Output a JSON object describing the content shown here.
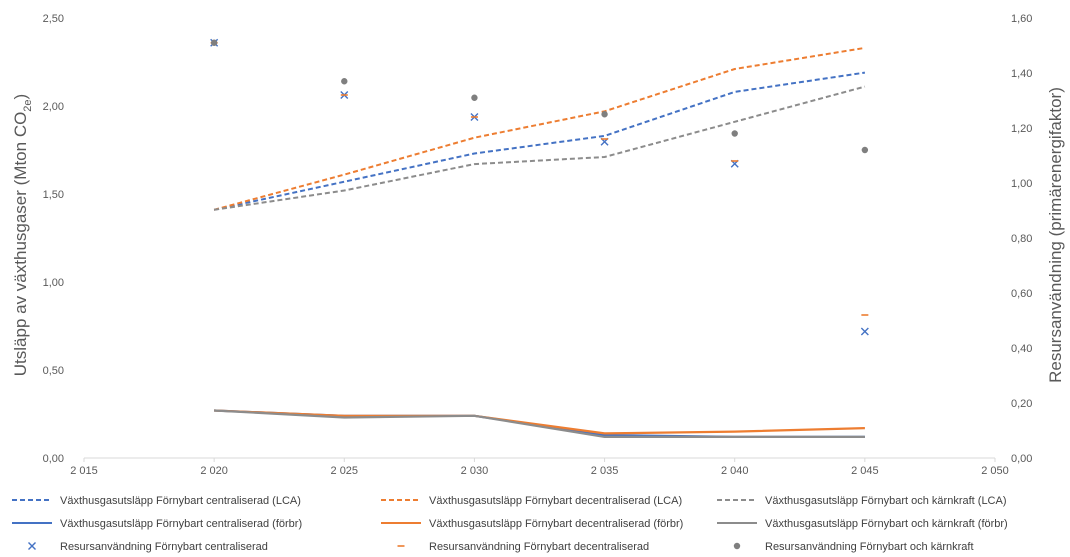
{
  "chart_data": {
    "type": "line",
    "title": "",
    "ylabel_left": {
      "main": "Utsläpp av växthusgaser (Mton CO",
      "sub": "2e",
      "suffix": ")"
    },
    "ylabel_right": "Resursanvändning (primärenergifaktor)",
    "xlim": [
      2015,
      2050
    ],
    "x_ticks": [
      2015,
      2020,
      2025,
      2030,
      2035,
      2040,
      2045,
      2050
    ],
    "x_tick_labels": [
      "2 015",
      "2 020",
      "2 025",
      "2 030",
      "2 035",
      "2 040",
      "2 045",
      "2 050"
    ],
    "ylim_left": [
      0,
      2.5
    ],
    "y_left_ticks": [
      0,
      0.5,
      1.0,
      1.5,
      2.0,
      2.5
    ],
    "y_left_tick_labels": [
      "0,00",
      "0,50",
      "1,00",
      "1,50",
      "2,00",
      "2,50"
    ],
    "ylim_right": [
      0,
      1.6
    ],
    "y_right_ticks": [
      0,
      0.2,
      0.4,
      0.6,
      0.8,
      1.0,
      1.2,
      1.4,
      1.6
    ],
    "y_right_tick_labels": [
      "0,00",
      "0,20",
      "0,40",
      "0,60",
      "0,80",
      "1,00",
      "1,20",
      "1,40",
      "1,60"
    ],
    "grid": false,
    "legend_position": "bottom",
    "series": [
      {
        "name": "Växthusgasutsläpp Förnybart centraliserad (LCA)",
        "kind": "line",
        "dash": true,
        "axis": "left",
        "color": "#4472C4",
        "x": [
          2020,
          2025,
          2030,
          2035,
          2040,
          2045
        ],
        "values": [
          1.41,
          1.57,
          1.73,
          1.83,
          2.08,
          2.19
        ]
      },
      {
        "name": "Växthusgasutsläpp Förnybart decentraliserad (LCA)",
        "kind": "line",
        "dash": true,
        "axis": "left",
        "color": "#ED7D31",
        "x": [
          2020,
          2025,
          2030,
          2035,
          2040,
          2045
        ],
        "values": [
          1.41,
          1.61,
          1.82,
          1.97,
          2.21,
          2.33
        ]
      },
      {
        "name": "Växthusgasutsläpp Förnybart och kärnkraft (LCA)",
        "kind": "line",
        "dash": true,
        "axis": "left",
        "color": "#8C8C8C",
        "x": [
          2020,
          2025,
          2030,
          2035,
          2040,
          2045
        ],
        "values": [
          1.41,
          1.52,
          1.67,
          1.71,
          1.91,
          2.11
        ]
      },
      {
        "name": "Växthusgasutsläpp Förnybart centraliserad (förbr)",
        "kind": "line",
        "dash": false,
        "axis": "left",
        "color": "#4472C4",
        "x": [
          2020,
          2025,
          2030,
          2035,
          2040,
          2045
        ],
        "values": [
          0.27,
          0.24,
          0.24,
          0.13,
          0.12,
          0.12
        ]
      },
      {
        "name": "Växthusgasutsläpp Förnybart decentraliserad (förbr)",
        "kind": "line",
        "dash": false,
        "axis": "left",
        "color": "#ED7D31",
        "x": [
          2020,
          2025,
          2030,
          2035,
          2040,
          2045
        ],
        "values": [
          0.27,
          0.24,
          0.24,
          0.14,
          0.15,
          0.17
        ]
      },
      {
        "name": "Växthusgasutsläpp Förnybart och kärnkraft (förbr)",
        "kind": "line",
        "dash": false,
        "axis": "left",
        "color": "#8C8C8C",
        "x": [
          2020,
          2025,
          2030,
          2035,
          2040,
          2045
        ],
        "values": [
          0.27,
          0.23,
          0.24,
          0.12,
          0.12,
          0.12
        ]
      },
      {
        "name": "Resursanvändning Förnybart centraliserad",
        "kind": "marker",
        "marker": "x",
        "axis": "right",
        "color": "#4472C4",
        "x": [
          2020,
          2025,
          2030,
          2035,
          2040,
          2045
        ],
        "values": [
          1.51,
          1.32,
          1.24,
          1.15,
          1.07,
          0.46
        ]
      },
      {
        "name": "Resursanvändning Förnybart decentraliserad",
        "kind": "marker",
        "marker": "dash",
        "axis": "right",
        "color": "#ED7D31",
        "x": [
          2020,
          2025,
          2030,
          2035,
          2040,
          2045
        ],
        "values": [
          1.51,
          1.32,
          1.24,
          1.16,
          1.08,
          0.52
        ]
      },
      {
        "name": "Resursanvändning Förnybart och kärnkraft",
        "kind": "marker",
        "marker": "circle",
        "axis": "right",
        "color": "#7F7F7F",
        "x": [
          2020,
          2025,
          2030,
          2035,
          2040,
          2045
        ],
        "values": [
          1.51,
          1.37,
          1.31,
          1.25,
          1.18,
          1.12
        ]
      }
    ]
  }
}
